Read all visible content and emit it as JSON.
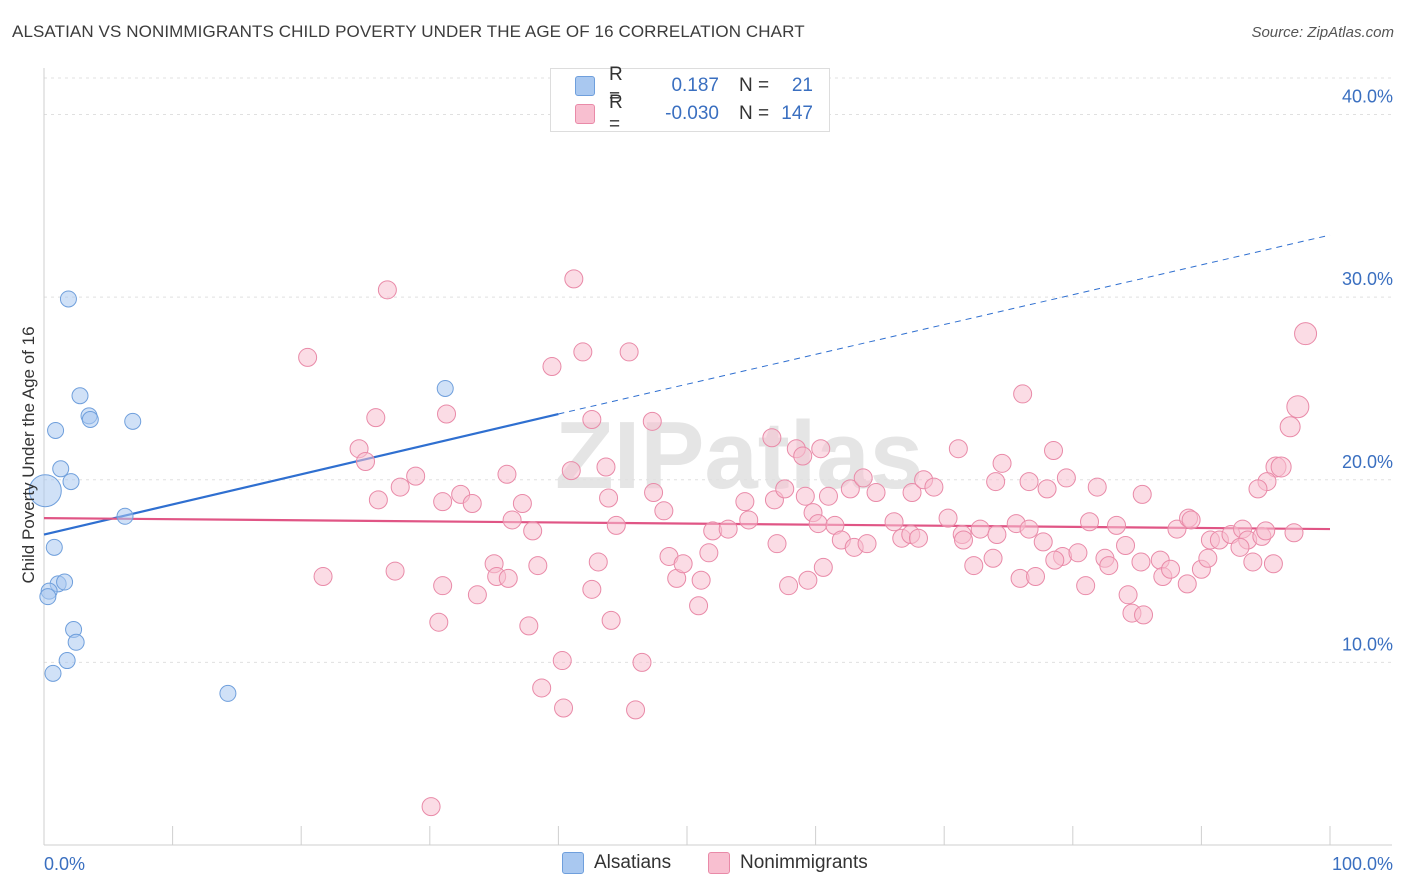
{
  "title": "ALSATIAN VS NONIMMIGRANTS CHILD POVERTY UNDER THE AGE OF 16 CORRELATION CHART",
  "source": "Source: ZipAtlas.com",
  "watermark": "ZIPatlas",
  "chart_data": {
    "type": "scatter",
    "title": "ALSATIAN VS NONIMMIGRANTS CHILD POVERTY UNDER THE AGE OF 16 CORRELATION CHART",
    "ylabel": "Child Poverty Under the Age of 16",
    "xlabel": "",
    "xlim": [
      0,
      100
    ],
    "ylim": [
      0,
      42
    ],
    "x_tick_labels": [
      "0.0%",
      "100.0%"
    ],
    "y_ticks": [
      10,
      20,
      30,
      40
    ],
    "y_tick_labels": [
      "10.0%",
      "20.0%",
      "30.0%",
      "40.0%"
    ],
    "legend": {
      "position": "top-center",
      "rows": [
        {
          "name": "Alsatians",
          "r_label": "R =",
          "r": "0.187",
          "n_label": "N =",
          "n": "21",
          "color": "#a9c8f0",
          "border": "#6f9fdc"
        },
        {
          "name": "Nonimmigrants",
          "r_label": "R =",
          "r": "-0.030",
          "n_label": "N =",
          "n": "147",
          "color": "#f8bfd0",
          "border": "#e98aa8"
        }
      ]
    },
    "series": [
      {
        "name": "Alsatians",
        "color": "#a9c8f0",
        "stroke": "#6f9fdc",
        "trend": {
          "x0": 0,
          "y0": 17.0,
          "x1": 40,
          "y1": 23.6,
          "dash_to_x": 100,
          "dash_to_y": 33.4,
          "color": "#2f6fd0"
        },
        "points": [
          [
            0.1,
            19.4,
            16
          ],
          [
            1.9,
            29.9,
            8
          ],
          [
            2.8,
            24.6,
            8
          ],
          [
            3.5,
            23.5,
            8
          ],
          [
            3.6,
            23.3,
            8
          ],
          [
            6.9,
            23.2,
            8
          ],
          [
            0.9,
            22.7,
            8
          ],
          [
            1.3,
            20.6,
            8
          ],
          [
            2.1,
            19.9,
            8
          ],
          [
            6.3,
            18.0,
            8
          ],
          [
            0.8,
            16.3,
            8
          ],
          [
            1.1,
            14.3,
            8
          ],
          [
            1.6,
            14.4,
            8
          ],
          [
            0.4,
            13.9,
            8
          ],
          [
            0.3,
            13.6,
            8
          ],
          [
            2.3,
            11.8,
            8
          ],
          [
            2.5,
            11.1,
            8
          ],
          [
            1.8,
            10.1,
            8
          ],
          [
            0.7,
            9.4,
            8
          ],
          [
            14.3,
            8.3,
            8
          ],
          [
            31.2,
            25.0,
            8
          ]
        ]
      },
      {
        "name": "Nonimmigrants",
        "color": "#f8bfd0",
        "stroke": "#e98aa8",
        "trend": {
          "x0": 0,
          "y0": 17.9,
          "x1": 100,
          "y1": 17.3,
          "color": "#e05585"
        },
        "points": [
          [
            20.5,
            26.7,
            9
          ],
          [
            26.7,
            30.4,
            9
          ],
          [
            41.2,
            31.0,
            9
          ],
          [
            39.5,
            26.2,
            9
          ],
          [
            41.9,
            27.0,
            9
          ],
          [
            45.5,
            27.0,
            9
          ],
          [
            25.8,
            23.4,
            9
          ],
          [
            24.5,
            21.7,
            9
          ],
          [
            25.0,
            21.0,
            9
          ],
          [
            42.6,
            23.3,
            9
          ],
          [
            47.3,
            23.2,
            9
          ],
          [
            31.3,
            23.6,
            9
          ],
          [
            56.6,
            22.3,
            9
          ],
          [
            58.5,
            21.7,
            9
          ],
          [
            59.0,
            21.3,
            9
          ],
          [
            60.4,
            21.7,
            9
          ],
          [
            71.1,
            21.7,
            9
          ],
          [
            76.1,
            24.7,
            9
          ],
          [
            78.5,
            21.6,
            9
          ],
          [
            74.5,
            20.9,
            9
          ],
          [
            95.8,
            20.7,
            10
          ],
          [
            98.1,
            28.0,
            11
          ],
          [
            97.5,
            24.0,
            11
          ],
          [
            96.9,
            22.9,
            10
          ],
          [
            96.2,
            20.7,
            10
          ],
          [
            95.1,
            19.9,
            9
          ],
          [
            94.4,
            19.5,
            9
          ],
          [
            28.9,
            20.2,
            9
          ],
          [
            36.0,
            20.3,
            9
          ],
          [
            41.0,
            20.5,
            9
          ],
          [
            43.7,
            20.7,
            9
          ],
          [
            27.7,
            19.6,
            9
          ],
          [
            32.4,
            19.2,
            9
          ],
          [
            26.0,
            18.9,
            9
          ],
          [
            31.0,
            18.8,
            9
          ],
          [
            33.3,
            18.7,
            9
          ],
          [
            37.2,
            18.7,
            9
          ],
          [
            43.9,
            19.0,
            9
          ],
          [
            47.4,
            19.3,
            9
          ],
          [
            48.2,
            18.3,
            9
          ],
          [
            54.5,
            18.8,
            9
          ],
          [
            56.8,
            18.9,
            9
          ],
          [
            57.6,
            19.5,
            9
          ],
          [
            59.2,
            19.1,
            9
          ],
          [
            61.0,
            19.1,
            9
          ],
          [
            62.7,
            19.5,
            9
          ],
          [
            63.7,
            20.1,
            9
          ],
          [
            64.7,
            19.3,
            9
          ],
          [
            67.5,
            19.3,
            9
          ],
          [
            68.4,
            20.0,
            9
          ],
          [
            69.2,
            19.6,
            9
          ],
          [
            74.0,
            19.9,
            9
          ],
          [
            76.6,
            19.9,
            9
          ],
          [
            78.0,
            19.5,
            9
          ],
          [
            79.5,
            20.1,
            9
          ],
          [
            81.9,
            19.6,
            9
          ],
          [
            85.4,
            19.2,
            9
          ],
          [
            36.4,
            17.8,
            9
          ],
          [
            38.0,
            17.2,
            9
          ],
          [
            44.5,
            17.5,
            9
          ],
          [
            52.0,
            17.2,
            9
          ],
          [
            53.2,
            17.3,
            9
          ],
          [
            54.8,
            17.8,
            9
          ],
          [
            57.0,
            16.5,
            9
          ],
          [
            59.8,
            18.2,
            9
          ],
          [
            60.2,
            17.6,
            9
          ],
          [
            61.5,
            17.5,
            9
          ],
          [
            62.0,
            16.7,
            9
          ],
          [
            63.0,
            16.3,
            9
          ],
          [
            64.0,
            16.5,
            9
          ],
          [
            66.1,
            17.7,
            9
          ],
          [
            66.7,
            16.8,
            9
          ],
          [
            67.4,
            17.0,
            9
          ],
          [
            68.0,
            16.8,
            9
          ],
          [
            70.3,
            17.9,
            9
          ],
          [
            71.4,
            17.0,
            9
          ],
          [
            72.8,
            17.3,
            9
          ],
          [
            74.1,
            17.0,
            9
          ],
          [
            75.6,
            17.6,
            9
          ],
          [
            76.6,
            17.3,
            9
          ],
          [
            77.7,
            16.6,
            9
          ],
          [
            79.2,
            15.8,
            9
          ],
          [
            80.4,
            16.0,
            9
          ],
          [
            81.3,
            17.7,
            9
          ],
          [
            82.5,
            15.7,
            9
          ],
          [
            83.4,
            17.5,
            9
          ],
          [
            84.1,
            16.4,
            9
          ],
          [
            85.3,
            15.5,
            9
          ],
          [
            86.8,
            15.6,
            9
          ],
          [
            88.1,
            17.3,
            9
          ],
          [
            89.0,
            17.9,
            9
          ],
          [
            89.2,
            17.8,
            9
          ],
          [
            90.7,
            16.7,
            9
          ],
          [
            91.4,
            16.7,
            9
          ],
          [
            92.3,
            17.0,
            9
          ],
          [
            93.2,
            17.3,
            9
          ],
          [
            93.6,
            16.7,
            9
          ],
          [
            94.7,
            16.9,
            9
          ],
          [
            95.0,
            17.2,
            9
          ],
          [
            93.0,
            16.3,
            9
          ],
          [
            94.0,
            15.5,
            9
          ],
          [
            95.6,
            15.4,
            9
          ],
          [
            97.2,
            17.1,
            9
          ],
          [
            21.7,
            14.7,
            9
          ],
          [
            27.3,
            15.0,
            9
          ],
          [
            30.7,
            12.2,
            9
          ],
          [
            31.0,
            14.2,
            9
          ],
          [
            33.7,
            13.7,
            9
          ],
          [
            35.0,
            15.4,
            9
          ],
          [
            35.2,
            14.7,
            9
          ],
          [
            36.1,
            14.6,
            9
          ],
          [
            37.7,
            12.0,
            9
          ],
          [
            38.4,
            15.3,
            9
          ],
          [
            43.1,
            15.5,
            9
          ],
          [
            42.6,
            14.0,
            9
          ],
          [
            44.1,
            12.3,
            9
          ],
          [
            48.6,
            15.8,
            9
          ],
          [
            49.2,
            14.6,
            9
          ],
          [
            49.7,
            15.4,
            9
          ],
          [
            51.1,
            14.5,
            9
          ],
          [
            50.9,
            13.1,
            9
          ],
          [
            51.7,
            16.0,
            9
          ],
          [
            57.9,
            14.2,
            9
          ],
          [
            59.4,
            14.5,
            9
          ],
          [
            60.6,
            15.2,
            9
          ],
          [
            71.5,
            16.7,
            9
          ],
          [
            72.3,
            15.3,
            9
          ],
          [
            73.8,
            15.7,
            9
          ],
          [
            75.9,
            14.6,
            9
          ],
          [
            77.1,
            14.7,
            9
          ],
          [
            78.6,
            15.6,
            9
          ],
          [
            81.0,
            14.2,
            9
          ],
          [
            82.8,
            15.3,
            9
          ],
          [
            84.3,
            13.7,
            9
          ],
          [
            84.6,
            12.7,
            9
          ],
          [
            85.5,
            12.6,
            9
          ],
          [
            87.0,
            14.7,
            9
          ],
          [
            87.6,
            15.1,
            9
          ],
          [
            88.9,
            14.3,
            9
          ],
          [
            90.0,
            15.1,
            9
          ],
          [
            38.7,
            8.6,
            9
          ],
          [
            40.4,
            7.5,
            9
          ],
          [
            40.3,
            10.1,
            9
          ],
          [
            46.5,
            10.0,
            9
          ],
          [
            46.0,
            7.4,
            9
          ],
          [
            30.1,
            2.1,
            9
          ],
          [
            90.5,
            15.7,
            9
          ]
        ]
      }
    ]
  }
}
